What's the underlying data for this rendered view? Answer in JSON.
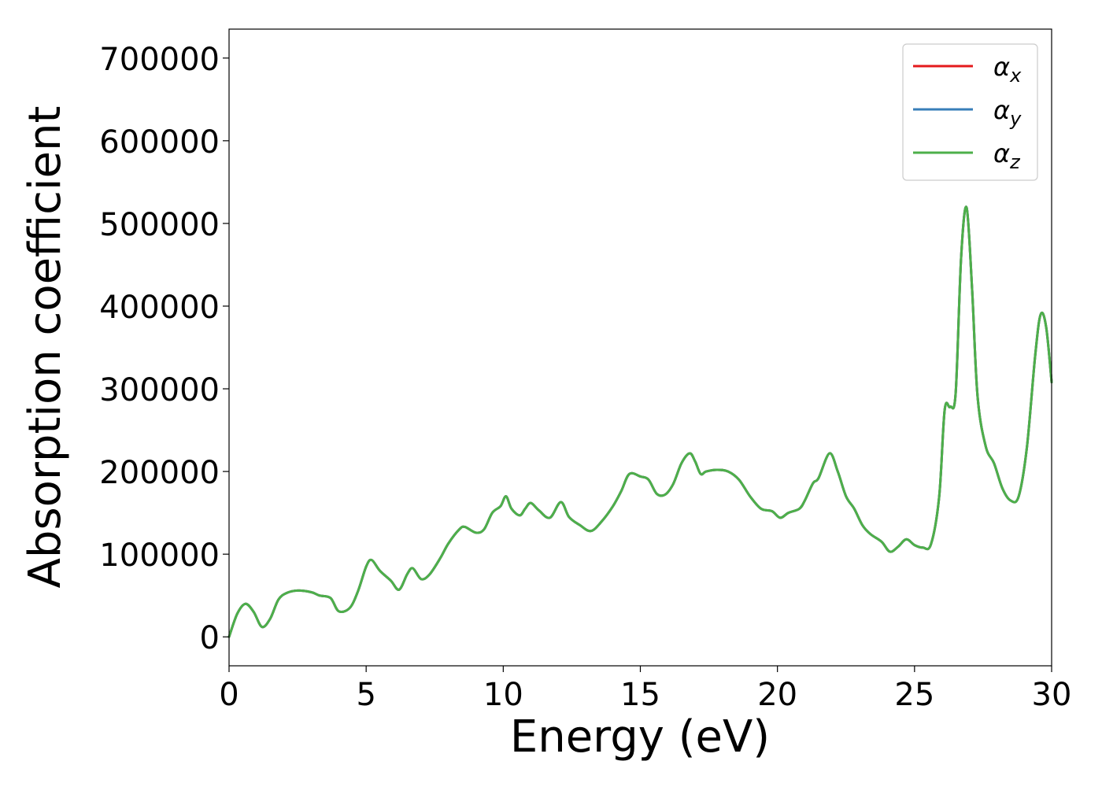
{
  "chart_data": {
    "type": "line",
    "title": "",
    "xlabel": "Energy (eV)",
    "ylabel": "Absorption coefficient",
    "xlim": [
      0,
      30
    ],
    "ylim": [
      -35000,
      735000
    ],
    "x_ticks": [
      0,
      5,
      10,
      15,
      20,
      25,
      30
    ],
    "x_tick_labels": [
      "0",
      "5",
      "10",
      "15",
      "20",
      "25",
      "30"
    ],
    "y_ticks": [
      0,
      100000,
      200000,
      300000,
      400000,
      500000,
      600000,
      700000
    ],
    "y_tick_labels": [
      "0",
      "100000",
      "200000",
      "300000",
      "400000",
      "500000",
      "600000",
      "700000"
    ],
    "grid": false,
    "legend_position": "top-right",
    "x": [
      0,
      0.3,
      0.6,
      0.9,
      1.2,
      1.5,
      1.8,
      2.1,
      2.5,
      3.0,
      3.3,
      3.7,
      4.0,
      4.4,
      4.7,
      5.0,
      5.2,
      5.5,
      5.9,
      6.2,
      6.5,
      6.7,
      7.0,
      7.3,
      7.7,
      8.0,
      8.4,
      8.6,
      9.0,
      9.3,
      9.6,
      9.9,
      10.1,
      10.3,
      10.6,
      10.8,
      11.0,
      11.3,
      11.7,
      12.1,
      12.4,
      12.8,
      13.2,
      13.6,
      14.0,
      14.3,
      14.6,
      15.0,
      15.3,
      15.6,
      15.9,
      16.2,
      16.5,
      16.8,
      17.0,
      17.2,
      17.4,
      17.8,
      18.2,
      18.6,
      19.0,
      19.4,
      19.8,
      20.1,
      20.4,
      20.8,
      21.0,
      21.3,
      21.5,
      21.9,
      22.2,
      22.5,
      22.8,
      23.1,
      23.4,
      23.8,
      24.1,
      24.4,
      24.7,
      25.0,
      25.3,
      25.6,
      25.9,
      26.1,
      26.3,
      26.5,
      26.7,
      26.9,
      27.1,
      27.3,
      27.6,
      27.9,
      28.2,
      28.5,
      28.8,
      29.1,
      29.4,
      29.6,
      29.8,
      30.0
    ],
    "series": [
      {
        "name": "αx",
        "color": "#e41a1c",
        "values": [
          0,
          28000,
          40000,
          30000,
          12000,
          22000,
          45000,
          53000,
          56000,
          54000,
          50000,
          47000,
          31000,
          35000,
          55000,
          85000,
          93000,
          80000,
          68000,
          57000,
          76000,
          83000,
          70000,
          75000,
          95000,
          113000,
          130000,
          133000,
          126000,
          130000,
          150000,
          158000,
          170000,
          155000,
          147000,
          155000,
          162000,
          153000,
          144000,
          163000,
          145000,
          135000,
          128000,
          140000,
          158000,
          176000,
          197000,
          194000,
          190000,
          173000,
          172000,
          185000,
          210000,
          222000,
          212000,
          197000,
          200000,
          202000,
          200000,
          190000,
          170000,
          155000,
          152000,
          144000,
          150000,
          155000,
          165000,
          186000,
          192000,
          222000,
          200000,
          170000,
          155000,
          135000,
          124000,
          115000,
          103000,
          109000,
          118000,
          111000,
          108000,
          112000,
          170000,
          275000,
          278000,
          295000,
          460000,
          519000,
          420000,
          290000,
          230000,
          210000,
          180000,
          165000,
          170000,
          230000,
          340000,
          390000,
          375000,
          308000
        ]
      },
      {
        "name": "αy",
        "color": "#377eb8",
        "values": [
          0,
          28000,
          40000,
          30000,
          12000,
          22000,
          45000,
          53000,
          56000,
          54000,
          50000,
          47000,
          31000,
          35000,
          55000,
          85000,
          93000,
          80000,
          68000,
          57000,
          76000,
          83000,
          70000,
          75000,
          95000,
          113000,
          130000,
          133000,
          126000,
          130000,
          150000,
          158000,
          170000,
          155000,
          147000,
          155000,
          162000,
          153000,
          144000,
          163000,
          145000,
          135000,
          128000,
          140000,
          158000,
          176000,
          197000,
          194000,
          190000,
          173000,
          172000,
          185000,
          210000,
          222000,
          212000,
          197000,
          200000,
          202000,
          200000,
          190000,
          170000,
          155000,
          152000,
          144000,
          150000,
          155000,
          165000,
          186000,
          192000,
          222000,
          200000,
          170000,
          155000,
          135000,
          124000,
          115000,
          103000,
          109000,
          118000,
          111000,
          108000,
          112000,
          170000,
          275000,
          278000,
          295000,
          460000,
          519000,
          420000,
          290000,
          230000,
          210000,
          180000,
          165000,
          170000,
          230000,
          340000,
          390000,
          375000,
          308000
        ]
      },
      {
        "name": "αz",
        "color": "#4daf4a",
        "values": [
          0,
          28000,
          40000,
          30000,
          12000,
          22000,
          45000,
          53000,
          56000,
          54000,
          50000,
          47000,
          31000,
          35000,
          55000,
          85000,
          93000,
          80000,
          68000,
          57000,
          76000,
          83000,
          70000,
          75000,
          95000,
          113000,
          130000,
          133000,
          126000,
          130000,
          150000,
          158000,
          170000,
          155000,
          147000,
          155000,
          162000,
          153000,
          144000,
          163000,
          145000,
          135000,
          128000,
          140000,
          158000,
          176000,
          197000,
          194000,
          190000,
          173000,
          172000,
          185000,
          210000,
          222000,
          212000,
          197000,
          200000,
          202000,
          200000,
          190000,
          170000,
          155000,
          152000,
          144000,
          150000,
          155000,
          165000,
          186000,
          192000,
          222000,
          200000,
          170000,
          155000,
          135000,
          124000,
          115000,
          103000,
          109000,
          118000,
          111000,
          108000,
          112000,
          170000,
          275000,
          278000,
          295000,
          460000,
          519000,
          420000,
          290000,
          230000,
          210000,
          180000,
          165000,
          170000,
          230000,
          340000,
          390000,
          375000,
          308000
        ]
      }
    ],
    "legend": [
      {
        "symbol": "α",
        "sub": "x",
        "color": "#e41a1c"
      },
      {
        "symbol": "α",
        "sub": "y",
        "color": "#377eb8"
      },
      {
        "symbol": "α",
        "sub": "z",
        "color": "#4daf4a"
      }
    ]
  }
}
